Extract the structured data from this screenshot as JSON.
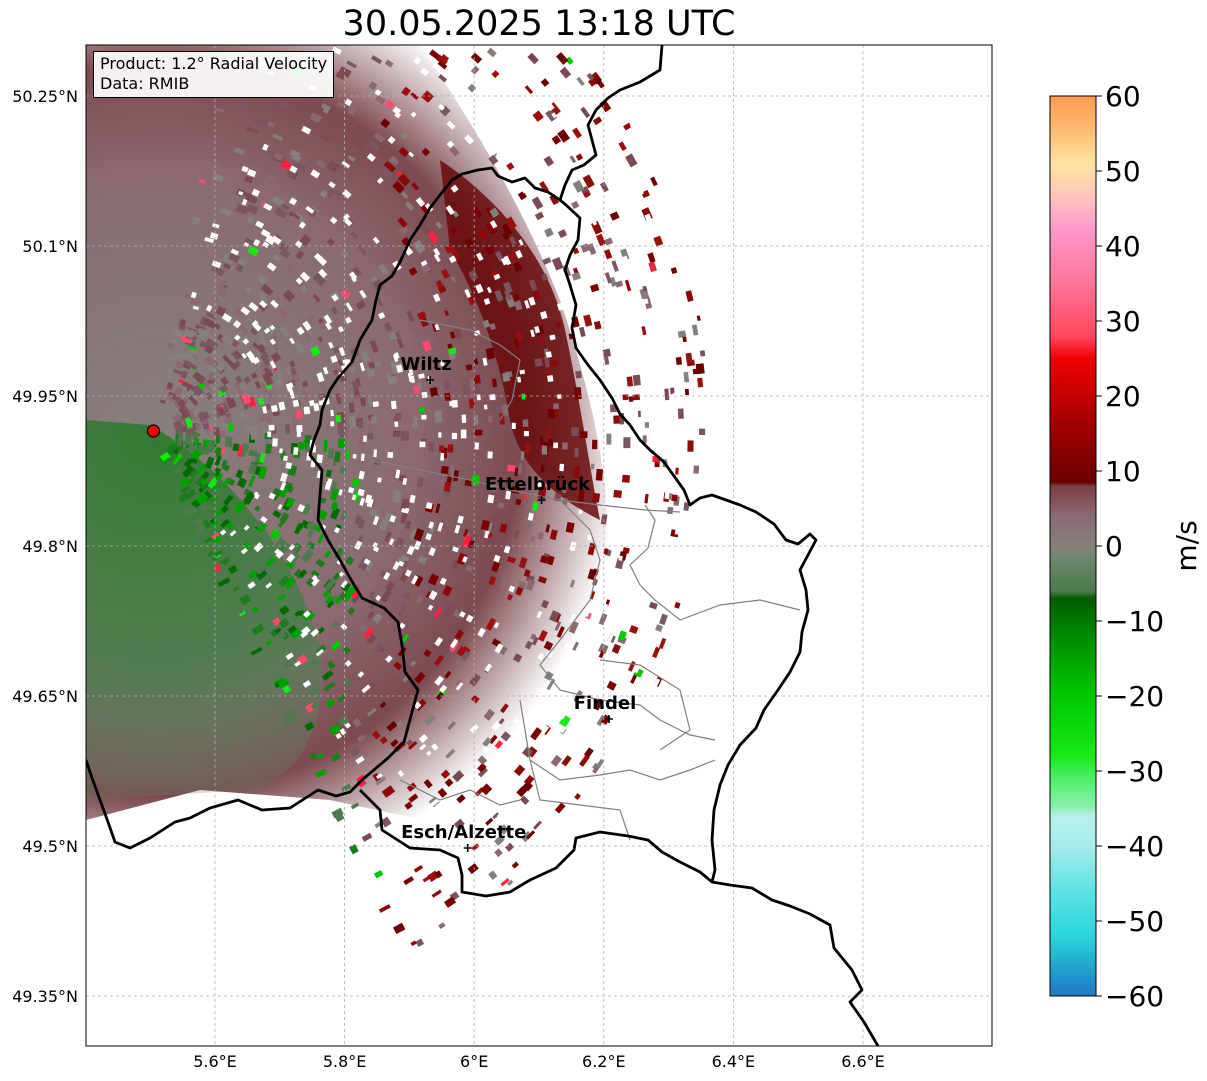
{
  "title": "30.05.2025 13:18 UTC",
  "info_box": {
    "product": "Product: 1.2° Radial Velocity",
    "data_source": "Data: RMIB"
  },
  "map": {
    "lon_range": [
      5.4,
      6.8
    ],
    "lat_range": [
      49.3,
      50.3
    ],
    "radar_site": {
      "lon": 5.505,
      "lat": 49.915,
      "marker_color": "#ff0000"
    },
    "lat_ticks": [
      {
        "value": 50.25,
        "label": "50.25°N"
      },
      {
        "value": 50.1,
        "label": "50.1°N"
      },
      {
        "value": 49.95,
        "label": "49.95°N"
      },
      {
        "value": 49.8,
        "label": "49.8°N"
      },
      {
        "value": 49.65,
        "label": "49.65°N"
      },
      {
        "value": 49.5,
        "label": "49.5°N"
      },
      {
        "value": 49.35,
        "label": "49.35°N"
      }
    ],
    "lon_ticks": [
      {
        "value": 5.6,
        "label": "5.6°E"
      },
      {
        "value": 5.8,
        "label": "5.8°E"
      },
      {
        "value": 6.0,
        "label": "6°E"
      },
      {
        "value": 6.2,
        "label": "6.2°E"
      },
      {
        "value": 6.4,
        "label": "6.4°E"
      },
      {
        "value": 6.6,
        "label": "6.6°E"
      }
    ],
    "cities": [
      {
        "name": "Wiltz",
        "lon": 5.932,
        "lat": 49.966
      },
      {
        "name": "Ettelbrück",
        "lon": 6.104,
        "lat": 49.846
      },
      {
        "name": "Findel",
        "lon": 6.208,
        "lat": 49.627
      },
      {
        "name": "Esch/Alzette",
        "lon": 5.99,
        "lat": 49.498
      }
    ]
  },
  "colorbar": {
    "label": "m/s",
    "min": -60,
    "max": 60,
    "ticks": [
      {
        "value": 60,
        "label": "60"
      },
      {
        "value": 50,
        "label": "50"
      },
      {
        "value": 40,
        "label": "40"
      },
      {
        "value": 30,
        "label": "30"
      },
      {
        "value": 20,
        "label": "20"
      },
      {
        "value": 10,
        "label": "10"
      },
      {
        "value": 0,
        "label": "0"
      },
      {
        "value": -10,
        "label": "−10"
      },
      {
        "value": -20,
        "label": "−20"
      },
      {
        "value": -30,
        "label": "−30"
      },
      {
        "value": -40,
        "label": "−40"
      },
      {
        "value": -50,
        "label": "−50"
      },
      {
        "value": -60,
        "label": "−60"
      }
    ],
    "stops": [
      {
        "value": -60,
        "color": "#1f78c4"
      },
      {
        "value": -56,
        "color": "#22a6cc"
      },
      {
        "value": -52,
        "color": "#2ad6dc"
      },
      {
        "value": -46,
        "color": "#5ce2e2"
      },
      {
        "value": -40,
        "color": "#a8ecec"
      },
      {
        "value": -36,
        "color": "#b6f0ec"
      },
      {
        "value": -35,
        "color": "#90f0b0"
      },
      {
        "value": -31,
        "color": "#4cf068"
      },
      {
        "value": -28,
        "color": "#18e818"
      },
      {
        "value": -20,
        "color": "#00c800"
      },
      {
        "value": -12,
        "color": "#008a00"
      },
      {
        "value": -7,
        "color": "#005c00"
      },
      {
        "value": -6,
        "color": "#4e7a4e"
      },
      {
        "value": -2,
        "color": "#6a866a"
      },
      {
        "value": 0,
        "color": "#86807c"
      },
      {
        "value": 4,
        "color": "#8a6a74"
      },
      {
        "value": 8,
        "color": "#7c3e44"
      },
      {
        "value": 8.5,
        "color": "#6a0000"
      },
      {
        "value": 16,
        "color": "#a00000"
      },
      {
        "value": 25,
        "color": "#f00000"
      },
      {
        "value": 28,
        "color": "#ff4a5e"
      },
      {
        "value": 36,
        "color": "#ff7aa0"
      },
      {
        "value": 42,
        "color": "#ff96cc"
      },
      {
        "value": 46,
        "color": "#ffc0c0"
      },
      {
        "value": 51,
        "color": "#ffe4a0"
      },
      {
        "value": 55,
        "color": "#ffbe78"
      },
      {
        "value": 60,
        "color": "#ff9a50"
      }
    ]
  },
  "colors": {
    "border": "#000000",
    "canton_lines": "#808080",
    "grid": "#b0b0b0"
  }
}
